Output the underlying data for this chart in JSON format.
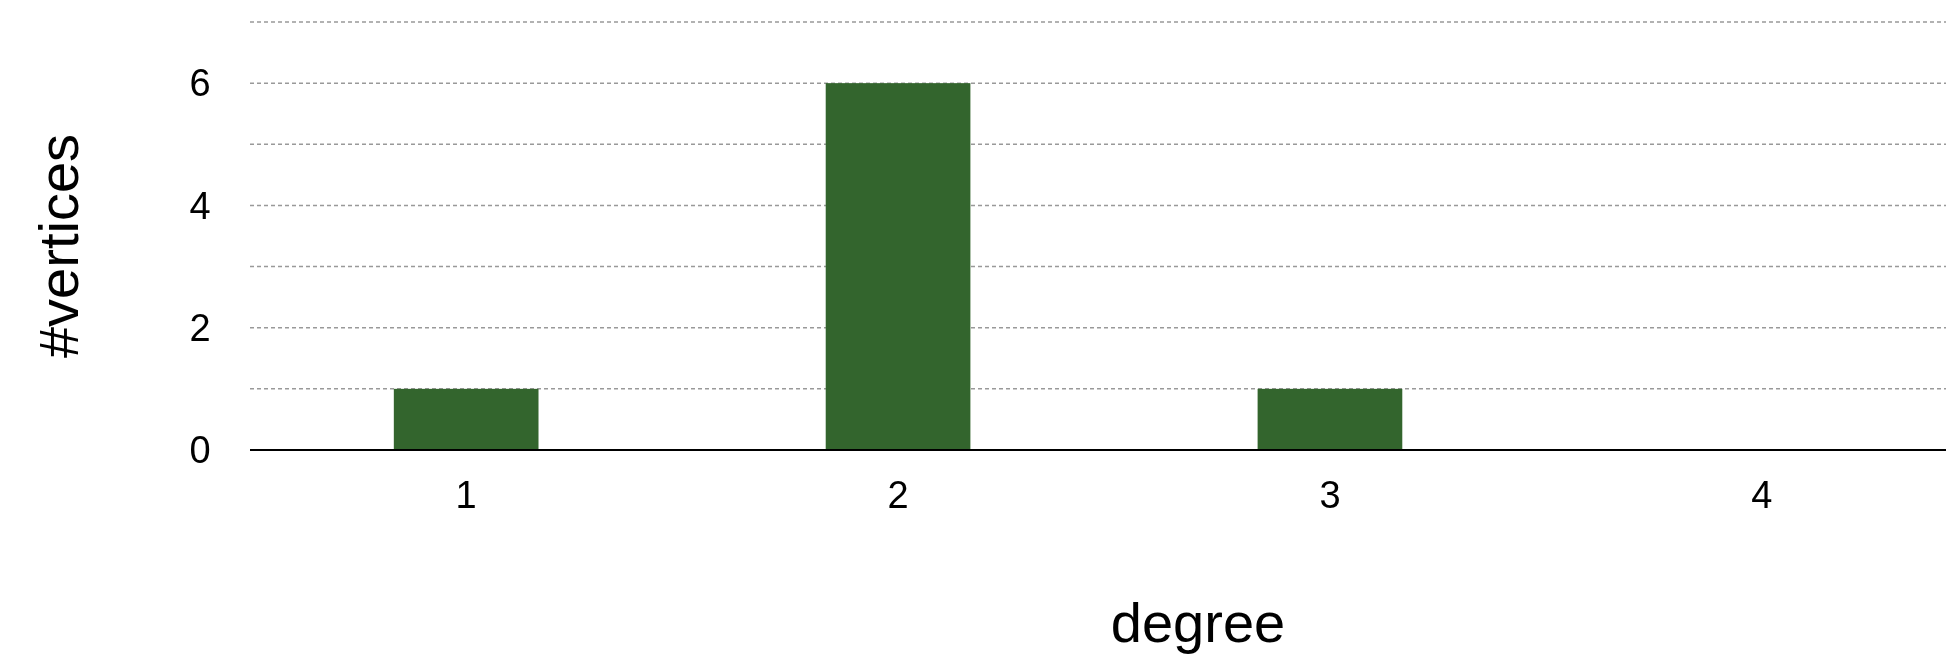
{
  "chart_data": {
    "type": "bar",
    "xlabel": "degree",
    "ylabel": "#vertices",
    "categories": [
      "1",
      "2",
      "3",
      "4"
    ],
    "values": [
      1,
      6,
      1,
      0
    ],
    "color": "#33652d",
    "ylim": [
      0,
      7
    ],
    "yticks": [
      0,
      {
        "value": 1,
        "label": null
      },
      2,
      {
        "value": 3,
        "label": null
      },
      4,
      {
        "value": 5,
        "label": null
      },
      6,
      {
        "value": 7,
        "label": null
      }
    ],
    "grid": "y"
  }
}
